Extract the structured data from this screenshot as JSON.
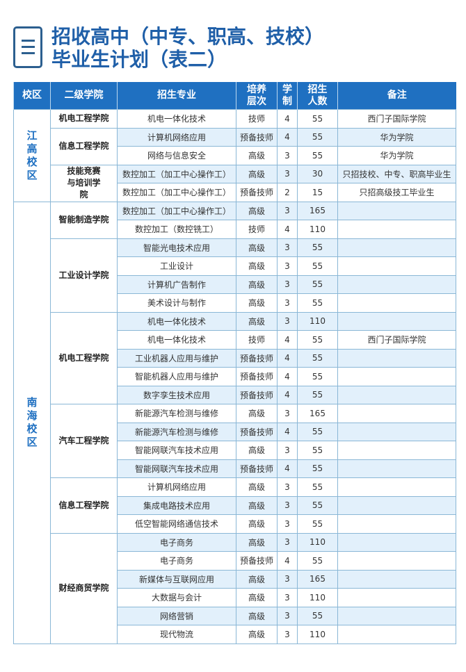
{
  "title": {
    "line1": "招收高中（中专、职高、技校）",
    "line2": "毕业生计划（表二）",
    "icon": "list-document-icon"
  },
  "colors": {
    "header": "#1f70c1",
    "title": "#1f5fa8",
    "stripe": "#e2f0fb"
  },
  "table": {
    "headers": [
      "校区",
      "二级学院",
      "招生专业",
      "培养层次",
      "学制",
      "招生人数",
      "备注"
    ],
    "campuses": [
      {
        "name": "江高校区",
        "colleges": [
          {
            "name": "机电工程学院",
            "rows": [
              [
                "机电一体化技术",
                "技师",
                "4",
                "55",
                "西门子国际学院"
              ]
            ]
          },
          {
            "name": "信息工程学院",
            "rows": [
              [
                "计算机网络应用",
                "预备技师",
                "4",
                "55",
                "华为学院"
              ],
              [
                "网络与信息安全",
                "高级",
                "3",
                "55",
                "华为学院"
              ]
            ]
          },
          {
            "name": "技能竞赛与培训学院",
            "rows": [
              [
                "数控加工（加工中心操作工）",
                "高级",
                "3",
                "30",
                "只招技校、中专、职高毕业生"
              ],
              [
                "数控加工（加工中心操作工）",
                "预备技师",
                "2",
                "15",
                "只招高级技工毕业生"
              ]
            ]
          }
        ]
      },
      {
        "name": "南海校区",
        "colleges": [
          {
            "name": "智能制造学院",
            "rows": [
              [
                "数控加工（加工中心操作工）",
                "高级",
                "3",
                "165",
                ""
              ],
              [
                "数控加工（数控铣工）",
                "技师",
                "4",
                "110",
                ""
              ]
            ]
          },
          {
            "name": "工业设计学院",
            "rows": [
              [
                "智能光电技术应用",
                "高级",
                "3",
                "55",
                ""
              ],
              [
                "工业设计",
                "高级",
                "3",
                "55",
                ""
              ],
              [
                "计算机广告制作",
                "高级",
                "3",
                "55",
                ""
              ],
              [
                "美术设计与制作",
                "高级",
                "3",
                "55",
                ""
              ]
            ]
          },
          {
            "name": "机电工程学院",
            "rows": [
              [
                "机电一体化技术",
                "高级",
                "3",
                "110",
                ""
              ],
              [
                "机电一体化技术",
                "技师",
                "4",
                "55",
                "西门子国际学院"
              ],
              [
                "工业机器人应用与维护",
                "预备技师",
                "4",
                "55",
                ""
              ],
              [
                "智能机器人应用与维护",
                "预备技师",
                "4",
                "55",
                ""
              ],
              [
                "数字孪生技术应用",
                "预备技师",
                "4",
                "55",
                ""
              ]
            ]
          },
          {
            "name": "汽车工程学院",
            "rows": [
              [
                "新能源汽车检测与维修",
                "高级",
                "3",
                "165",
                ""
              ],
              [
                "新能源汽车检测与维修",
                "预备技师",
                "4",
                "55",
                ""
              ],
              [
                "智能网联汽车技术应用",
                "高级",
                "3",
                "55",
                ""
              ],
              [
                "智能网联汽车技术应用",
                "预备技师",
                "4",
                "55",
                ""
              ]
            ]
          },
          {
            "name": "信息工程学院",
            "rows": [
              [
                "计算机网络应用",
                "高级",
                "3",
                "55",
                ""
              ],
              [
                "集成电路技术应用",
                "高级",
                "3",
                "55",
                ""
              ],
              [
                "低空智能网络通信技术",
                "高级",
                "3",
                "55",
                ""
              ]
            ]
          },
          {
            "name": "财经商贸学院",
            "rows": [
              [
                "电子商务",
                "高级",
                "3",
                "110",
                ""
              ],
              [
                "电子商务",
                "预备技师",
                "4",
                "55",
                ""
              ],
              [
                "新媒体与互联网应用",
                "高级",
                "3",
                "165",
                ""
              ],
              [
                "大数据与会计",
                "高级",
                "3",
                "110",
                ""
              ],
              [
                "网络营销",
                "高级",
                "3",
                "55",
                ""
              ],
              [
                "现代物流",
                "高级",
                "3",
                "110",
                ""
              ]
            ]
          }
        ]
      }
    ]
  }
}
